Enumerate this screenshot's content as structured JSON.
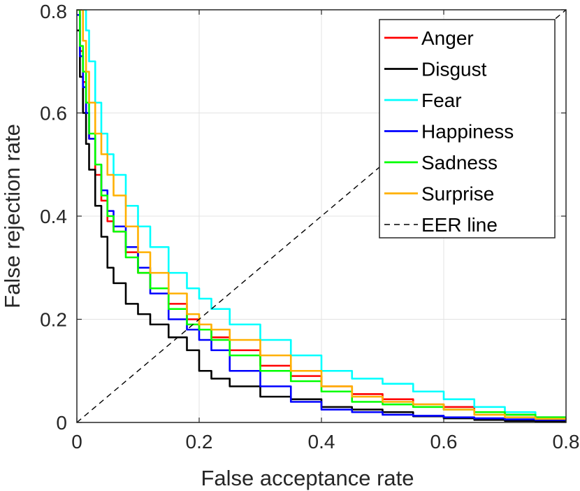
{
  "chart_data": {
    "type": "line",
    "title": "",
    "xlabel": "False acceptance rate",
    "ylabel": "False rejection rate",
    "xlim": [
      0,
      0.8
    ],
    "ylim": [
      0,
      0.8
    ],
    "xticks": [
      0,
      0.2,
      0.4,
      0.6,
      0.8
    ],
    "yticks": [
      0,
      0.2,
      0.4,
      0.6,
      0.8
    ],
    "xtick_labels": [
      "0",
      "0.2",
      "0.4",
      "0.6",
      "0.8"
    ],
    "ytick_labels": [
      "0",
      "0.2",
      "0.4",
      "0.6",
      "0.8"
    ],
    "grid": true,
    "legend_position": "top-right",
    "series": [
      {
        "name": "Anger",
        "color": "#ff0000",
        "style": "solid",
        "x": [
          0,
          0.005,
          0.01,
          0.015,
          0.02,
          0.03,
          0.04,
          0.05,
          0.06,
          0.08,
          0.1,
          0.12,
          0.15,
          0.18,
          0.2,
          0.22,
          0.25,
          0.3,
          0.35,
          0.4,
          0.45,
          0.5,
          0.55,
          0.6,
          0.65,
          0.7,
          0.75,
          0.8
        ],
        "y": [
          0.8,
          0.72,
          0.66,
          0.6,
          0.55,
          0.48,
          0.43,
          0.39,
          0.37,
          0.33,
          0.29,
          0.26,
          0.23,
          0.2,
          0.18,
          0.165,
          0.14,
          0.11,
          0.09,
          0.07,
          0.055,
          0.045,
          0.035,
          0.03,
          0.02,
          0.015,
          0.01,
          0.005
        ]
      },
      {
        "name": "Disgust",
        "color": "#000000",
        "style": "solid",
        "x": [
          0,
          0.005,
          0.01,
          0.015,
          0.02,
          0.03,
          0.04,
          0.05,
          0.06,
          0.08,
          0.1,
          0.12,
          0.15,
          0.18,
          0.2,
          0.22,
          0.25,
          0.3,
          0.35,
          0.4,
          0.45,
          0.5,
          0.55,
          0.6,
          0.65,
          0.7,
          0.75,
          0.8
        ],
        "y": [
          0.76,
          0.67,
          0.6,
          0.54,
          0.49,
          0.42,
          0.36,
          0.3,
          0.27,
          0.23,
          0.21,
          0.19,
          0.165,
          0.14,
          0.1,
          0.085,
          0.07,
          0.05,
          0.045,
          0.03,
          0.025,
          0.02,
          0.012,
          0.008,
          0.005,
          0.003,
          0.002,
          0.001
        ]
      },
      {
        "name": "Fear",
        "color": "#00ffff",
        "style": "solid",
        "x": [
          0.01,
          0.015,
          0.02,
          0.03,
          0.04,
          0.05,
          0.06,
          0.08,
          0.1,
          0.12,
          0.15,
          0.18,
          0.2,
          0.22,
          0.25,
          0.3,
          0.35,
          0.4,
          0.45,
          0.5,
          0.55,
          0.6,
          0.65,
          0.7,
          0.75,
          0.8
        ],
        "y": [
          0.8,
          0.76,
          0.7,
          0.62,
          0.56,
          0.52,
          0.48,
          0.42,
          0.38,
          0.34,
          0.29,
          0.26,
          0.24,
          0.22,
          0.19,
          0.16,
          0.13,
          0.1,
          0.085,
          0.075,
          0.06,
          0.045,
          0.03,
          0.02,
          0.01,
          0.005
        ]
      },
      {
        "name": "Happiness",
        "color": "#0000ff",
        "style": "solid",
        "x": [
          0,
          0.005,
          0.01,
          0.015,
          0.02,
          0.03,
          0.04,
          0.05,
          0.06,
          0.08,
          0.1,
          0.12,
          0.15,
          0.18,
          0.2,
          0.22,
          0.25,
          0.3,
          0.35,
          0.4,
          0.45,
          0.5,
          0.55,
          0.6,
          0.65,
          0.7,
          0.75,
          0.8
        ],
        "y": [
          0.79,
          0.71,
          0.65,
          0.6,
          0.55,
          0.5,
          0.45,
          0.41,
          0.38,
          0.34,
          0.3,
          0.25,
          0.2,
          0.18,
          0.16,
          0.14,
          0.1,
          0.07,
          0.04,
          0.025,
          0.02,
          0.015,
          0.013,
          0.01,
          0.008,
          0.006,
          0.005,
          0.005
        ]
      },
      {
        "name": "Sadness",
        "color": "#00ff00",
        "style": "solid",
        "x": [
          0,
          0.005,
          0.01,
          0.015,
          0.02,
          0.03,
          0.04,
          0.05,
          0.06,
          0.08,
          0.1,
          0.12,
          0.15,
          0.18,
          0.2,
          0.22,
          0.25,
          0.3,
          0.35,
          0.4,
          0.45,
          0.5,
          0.55,
          0.6,
          0.65,
          0.7,
          0.75,
          0.8
        ],
        "y": [
          0.8,
          0.73,
          0.68,
          0.62,
          0.56,
          0.5,
          0.44,
          0.4,
          0.37,
          0.32,
          0.29,
          0.26,
          0.22,
          0.19,
          0.18,
          0.16,
          0.13,
          0.1,
          0.08,
          0.06,
          0.04,
          0.035,
          0.03,
          0.025,
          0.02,
          0.015,
          0.01,
          0.008
        ]
      },
      {
        "name": "Surprise",
        "color": "#ffb000",
        "style": "solid",
        "x": [
          0.005,
          0.01,
          0.015,
          0.02,
          0.03,
          0.04,
          0.05,
          0.06,
          0.08,
          0.1,
          0.12,
          0.15,
          0.18,
          0.2,
          0.22,
          0.25,
          0.3,
          0.35,
          0.4,
          0.45,
          0.5,
          0.55,
          0.6,
          0.65,
          0.7,
          0.75,
          0.8
        ],
        "y": [
          0.8,
          0.74,
          0.68,
          0.62,
          0.56,
          0.52,
          0.48,
          0.44,
          0.38,
          0.33,
          0.29,
          0.25,
          0.21,
          0.19,
          0.18,
          0.16,
          0.13,
          0.1,
          0.07,
          0.05,
          0.04,
          0.035,
          0.025,
          0.015,
          0.01,
          0.007,
          0.005
        ]
      },
      {
        "name": "EER line",
        "color": "#000000",
        "style": "dashed",
        "x": [
          0,
          0.8
        ],
        "y": [
          0,
          0.8
        ]
      }
    ]
  }
}
